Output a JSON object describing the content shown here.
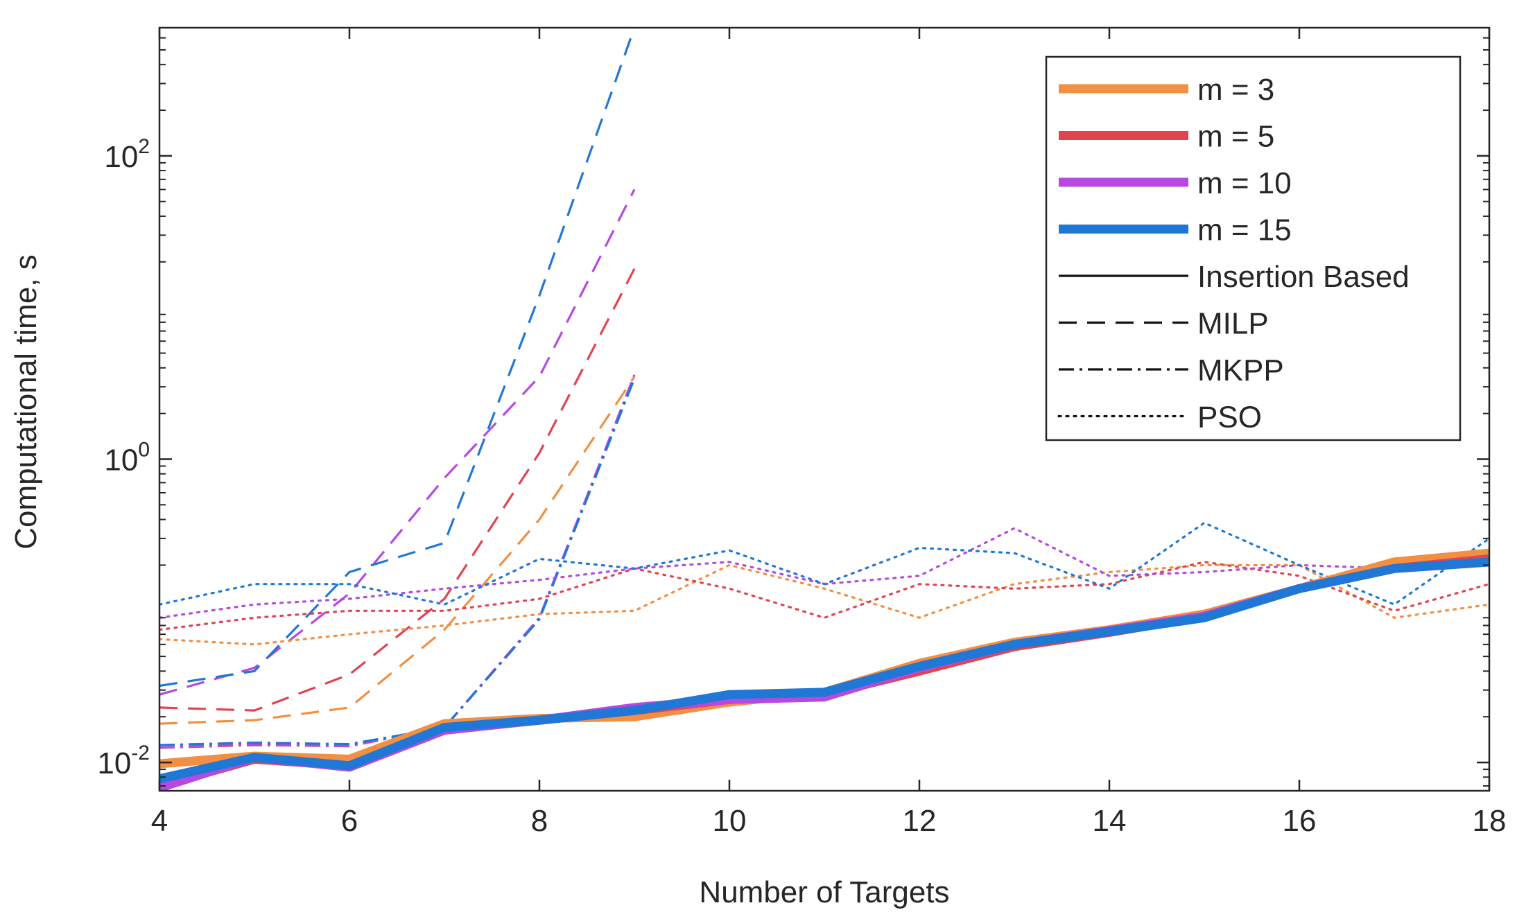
{
  "chart_data": {
    "type": "line",
    "xlabel": "Number of Targets",
    "ylabel": "Computational time, s",
    "xscale": "linear",
    "yscale": "log",
    "xlim": [
      4,
      18
    ],
    "ylim": [
      0.0065,
      700
    ],
    "xticks": [
      4,
      6,
      8,
      10,
      12,
      14,
      16,
      18
    ],
    "yticks": [
      {
        "value": 0.01,
        "base": "10",
        "exp": "-2"
      },
      {
        "value": 1,
        "base": "10",
        "exp": "0"
      },
      {
        "value": 100,
        "base": "10",
        "exp": "2"
      }
    ],
    "legend_position": "top-right",
    "colors": {
      "m3": "#f28f43",
      "m5": "#e2434f",
      "m10": "#b649e0",
      "m15": "#1f77d6",
      "axis": "#262626"
    },
    "legend": [
      {
        "label": "m = 3",
        "kind": "color",
        "key": "m3"
      },
      {
        "label": "m = 5",
        "kind": "color",
        "key": "m5"
      },
      {
        "label": "m = 10",
        "kind": "color",
        "key": "m10"
      },
      {
        "label": "m = 15",
        "kind": "color",
        "key": "m15"
      },
      {
        "label": "Insertion Based",
        "kind": "style",
        "style": "solid"
      },
      {
        "label": "MILP",
        "kind": "style",
        "style": "dashed"
      },
      {
        "label": "MKPP",
        "kind": "style",
        "style": "dashdot"
      },
      {
        "label": "PSO",
        "kind": "style",
        "style": "dotted"
      }
    ],
    "series": [
      {
        "name": "MKPP m = 3",
        "method": "MKPP",
        "m": "m3",
        "x": [
          4,
          5,
          6,
          7,
          8,
          9
        ],
        "y": [
          0.013,
          0.0135,
          0.013,
          0.017,
          0.09,
          3.5
        ]
      },
      {
        "name": "MKPP m = 5",
        "method": "MKPP",
        "m": "m5",
        "x": [
          4,
          5,
          6,
          7,
          8,
          9
        ],
        "y": [
          0.0125,
          0.013,
          0.0128,
          0.017,
          0.09,
          3.5
        ]
      },
      {
        "name": "MKPP m = 10",
        "method": "MKPP",
        "m": "m10",
        "x": [
          4,
          5,
          6,
          7,
          8,
          9
        ],
        "y": [
          0.0125,
          0.0132,
          0.0128,
          0.017,
          0.09,
          3.6
        ]
      },
      {
        "name": "MKPP m = 15",
        "method": "MKPP",
        "m": "m15",
        "x": [
          4,
          5,
          6,
          7,
          8,
          9
        ],
        "y": [
          0.013,
          0.0135,
          0.0132,
          0.017,
          0.088,
          3.4
        ]
      },
      {
        "name": "MILP m = 3",
        "method": "MILP",
        "m": "m3",
        "x": [
          4,
          5,
          6,
          7,
          8,
          9
        ],
        "y": [
          0.018,
          0.019,
          0.023,
          0.075,
          0.4,
          3.5
        ]
      },
      {
        "name": "MILP m = 5",
        "method": "MILP",
        "m": "m5",
        "x": [
          4,
          5,
          6,
          7,
          8,
          9
        ],
        "y": [
          0.023,
          0.022,
          0.038,
          0.12,
          1.1,
          18
        ]
      },
      {
        "name": "MILP m = 10",
        "method": "MILP",
        "m": "m10",
        "x": [
          4,
          5,
          6,
          7,
          8,
          9
        ],
        "y": [
          0.028,
          0.042,
          0.13,
          0.75,
          3.5,
          60
        ]
      },
      {
        "name": "MILP m = 15",
        "method": "MILP",
        "m": "m15",
        "x": [
          4,
          5,
          6,
          7,
          8,
          9
        ],
        "y": [
          0.032,
          0.04,
          0.18,
          0.28,
          12,
          700
        ]
      },
      {
        "name": "PSO m = 3",
        "method": "PSO",
        "m": "m3",
        "x": [
          4,
          5,
          6,
          7,
          8,
          9,
          10,
          11,
          12,
          13,
          14,
          15,
          16,
          17,
          18
        ],
        "y": [
          0.065,
          0.06,
          0.07,
          0.08,
          0.095,
          0.1,
          0.2,
          0.14,
          0.09,
          0.15,
          0.18,
          0.2,
          0.2,
          0.09,
          0.11
        ]
      },
      {
        "name": "PSO m = 5",
        "method": "PSO",
        "m": "m5",
        "x": [
          4,
          5,
          6,
          7,
          8,
          9,
          10,
          11,
          12,
          13,
          14,
          15,
          16,
          17,
          18
        ],
        "y": [
          0.075,
          0.09,
          0.1,
          0.1,
          0.12,
          0.19,
          0.14,
          0.09,
          0.15,
          0.14,
          0.15,
          0.21,
          0.17,
          0.1,
          0.15
        ]
      },
      {
        "name": "PSO m = 10",
        "method": "PSO",
        "m": "m10",
        "x": [
          4,
          5,
          6,
          7,
          8,
          9,
          10,
          11,
          12,
          13,
          14,
          15,
          16,
          17,
          18
        ],
        "y": [
          0.09,
          0.11,
          0.12,
          0.14,
          0.16,
          0.19,
          0.21,
          0.15,
          0.17,
          0.35,
          0.17,
          0.18,
          0.2,
          0.19,
          0.22
        ]
      },
      {
        "name": "PSO m = 15",
        "method": "PSO",
        "m": "m15",
        "x": [
          4,
          5,
          6,
          7,
          8,
          9,
          10,
          11,
          12,
          13,
          14,
          15,
          16,
          17,
          18
        ],
        "y": [
          0.11,
          0.15,
          0.15,
          0.11,
          0.22,
          0.19,
          0.25,
          0.15,
          0.26,
          0.24,
          0.14,
          0.38,
          0.2,
          0.11,
          0.3
        ]
      },
      {
        "name": "Insertion Based m = 3",
        "method": "Insertion Based",
        "m": "m3",
        "x": [
          4,
          5,
          6,
          7,
          8,
          9,
          10,
          11,
          12,
          13,
          14,
          15,
          16,
          17,
          18
        ],
        "y": [
          0.0098,
          0.011,
          0.0105,
          0.018,
          0.0195,
          0.02,
          0.025,
          0.029,
          0.045,
          0.062,
          0.075,
          0.095,
          0.14,
          0.21,
          0.24
        ]
      },
      {
        "name": "Insertion Based m = 5",
        "method": "Insertion Based",
        "m": "m5",
        "x": [
          4,
          5,
          6,
          7,
          8,
          9,
          10,
          11,
          12,
          13,
          14,
          15,
          16,
          17,
          18
        ],
        "y": [
          0.007,
          0.0105,
          0.0095,
          0.0165,
          0.019,
          0.022,
          0.026,
          0.028,
          0.04,
          0.058,
          0.072,
          0.092,
          0.14,
          0.19,
          0.22
        ]
      },
      {
        "name": "Insertion Based m = 10",
        "method": "Insertion Based",
        "m": "m10",
        "x": [
          4,
          5,
          6,
          7,
          8,
          9,
          10,
          11,
          12,
          13,
          14,
          15,
          16,
          17,
          18
        ],
        "y": [
          0.0068,
          0.0108,
          0.0093,
          0.0163,
          0.019,
          0.023,
          0.026,
          0.027,
          0.042,
          0.06,
          0.074,
          0.092,
          0.14,
          0.19,
          0.21
        ]
      },
      {
        "name": "Insertion Based m = 15",
        "method": "Insertion Based",
        "m": "m15",
        "x": [
          4,
          5,
          6,
          7,
          8,
          9,
          10,
          11,
          12,
          13,
          14,
          15,
          16,
          17,
          18
        ],
        "y": [
          0.0078,
          0.0108,
          0.0095,
          0.017,
          0.019,
          0.022,
          0.028,
          0.029,
          0.043,
          0.06,
          0.073,
          0.09,
          0.14,
          0.19,
          0.21
        ]
      }
    ]
  }
}
